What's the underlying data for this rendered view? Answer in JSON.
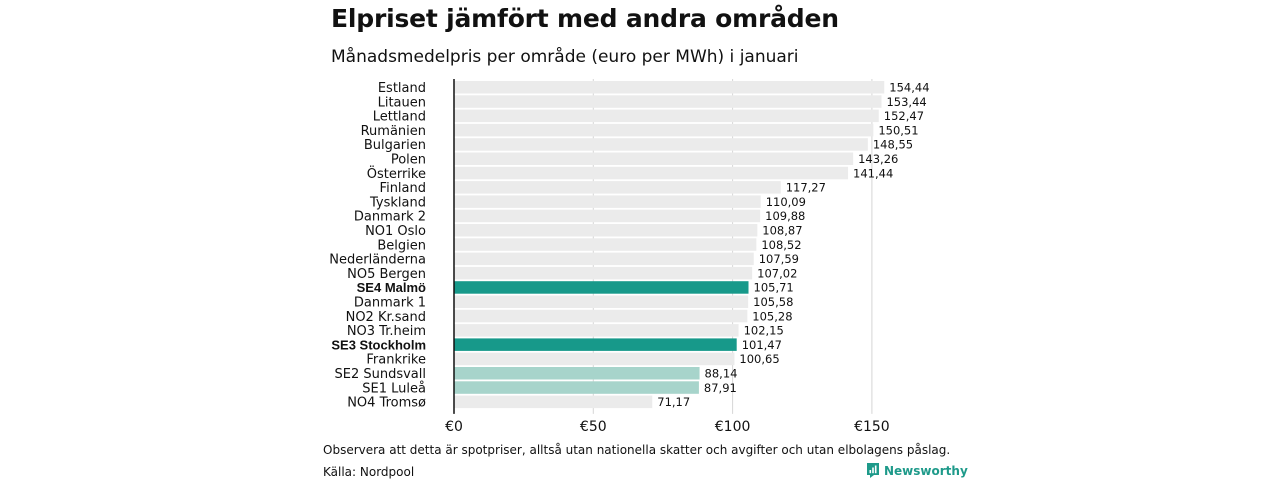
{
  "header": {
    "title": "Elpriset jämfört med andra områden",
    "subtitle": "Månadsmedelpris per område (euro per MWh) i januari"
  },
  "footer": {
    "note": "Observera att detta är spotpriser, alltså utan nationella skatter och avgifter och utan elbolagens påslag.",
    "source": "Källa: Nordpool",
    "brand": "Newsworthy"
  },
  "colors": {
    "bar_default": "#ebebeb",
    "bar_highlight": "#17998a",
    "bar_light": "#a7d4cb",
    "gridline": "#d6d6d6",
    "axis": "#111111",
    "brand": "#1e9a8a"
  },
  "chart_data": {
    "type": "bar",
    "orientation": "horizontal",
    "title": "Elpriset jämfört med andra områden",
    "subtitle": "Månadsmedelpris per område (euro per MWh) i januari",
    "xlabel": "",
    "ylabel": "",
    "xlim": [
      0,
      150
    ],
    "ticks": [
      0,
      50,
      100,
      150
    ],
    "tick_labels": [
      "€0",
      "€50",
      "€100",
      "€150"
    ],
    "grid": true,
    "categories": [
      "Estland",
      "Litauen",
      "Lettland",
      "Rumänien",
      "Bulgarien",
      "Polen",
      "Österrike",
      "Finland",
      "Tyskland",
      "Danmark 2",
      "NO1 Oslo",
      "Belgien",
      "Nederländerna",
      "NO5 Bergen",
      "SE4 Malmö",
      "Danmark 1",
      "NO2 Kr.sand",
      "NO3 Tr.heim",
      "SE3 Stockholm",
      "Frankrike",
      "SE2 Sundsvall",
      "SE1 Luleå",
      "NO4 Tromsø"
    ],
    "values": [
      154.44,
      153.44,
      152.47,
      150.51,
      148.55,
      143.26,
      141.44,
      117.27,
      110.09,
      109.88,
      108.87,
      108.52,
      107.59,
      107.02,
      105.71,
      105.58,
      105.28,
      102.15,
      101.47,
      100.65,
      88.14,
      87.91,
      71.17
    ],
    "value_labels": [
      "154,44",
      "153,44",
      "152,47",
      "150,51",
      "148,55",
      "143,26",
      "141,44",
      "117,27",
      "110,09",
      "109,88",
      "108,87",
      "108,52",
      "107,59",
      "107,02",
      "105,71",
      "105,58",
      "105,28",
      "102,15",
      "101,47",
      "100,65",
      "88,14",
      "87,91",
      "71,17"
    ],
    "styles": [
      "default",
      "default",
      "default",
      "default",
      "default",
      "default",
      "default",
      "default",
      "default",
      "default",
      "default",
      "default",
      "default",
      "default",
      "highlight",
      "default",
      "default",
      "default",
      "highlight",
      "default",
      "light",
      "light",
      "default"
    ],
    "bold": [
      false,
      false,
      false,
      false,
      false,
      false,
      false,
      false,
      false,
      false,
      false,
      false,
      false,
      false,
      true,
      false,
      false,
      false,
      true,
      false,
      false,
      false,
      false
    ]
  }
}
